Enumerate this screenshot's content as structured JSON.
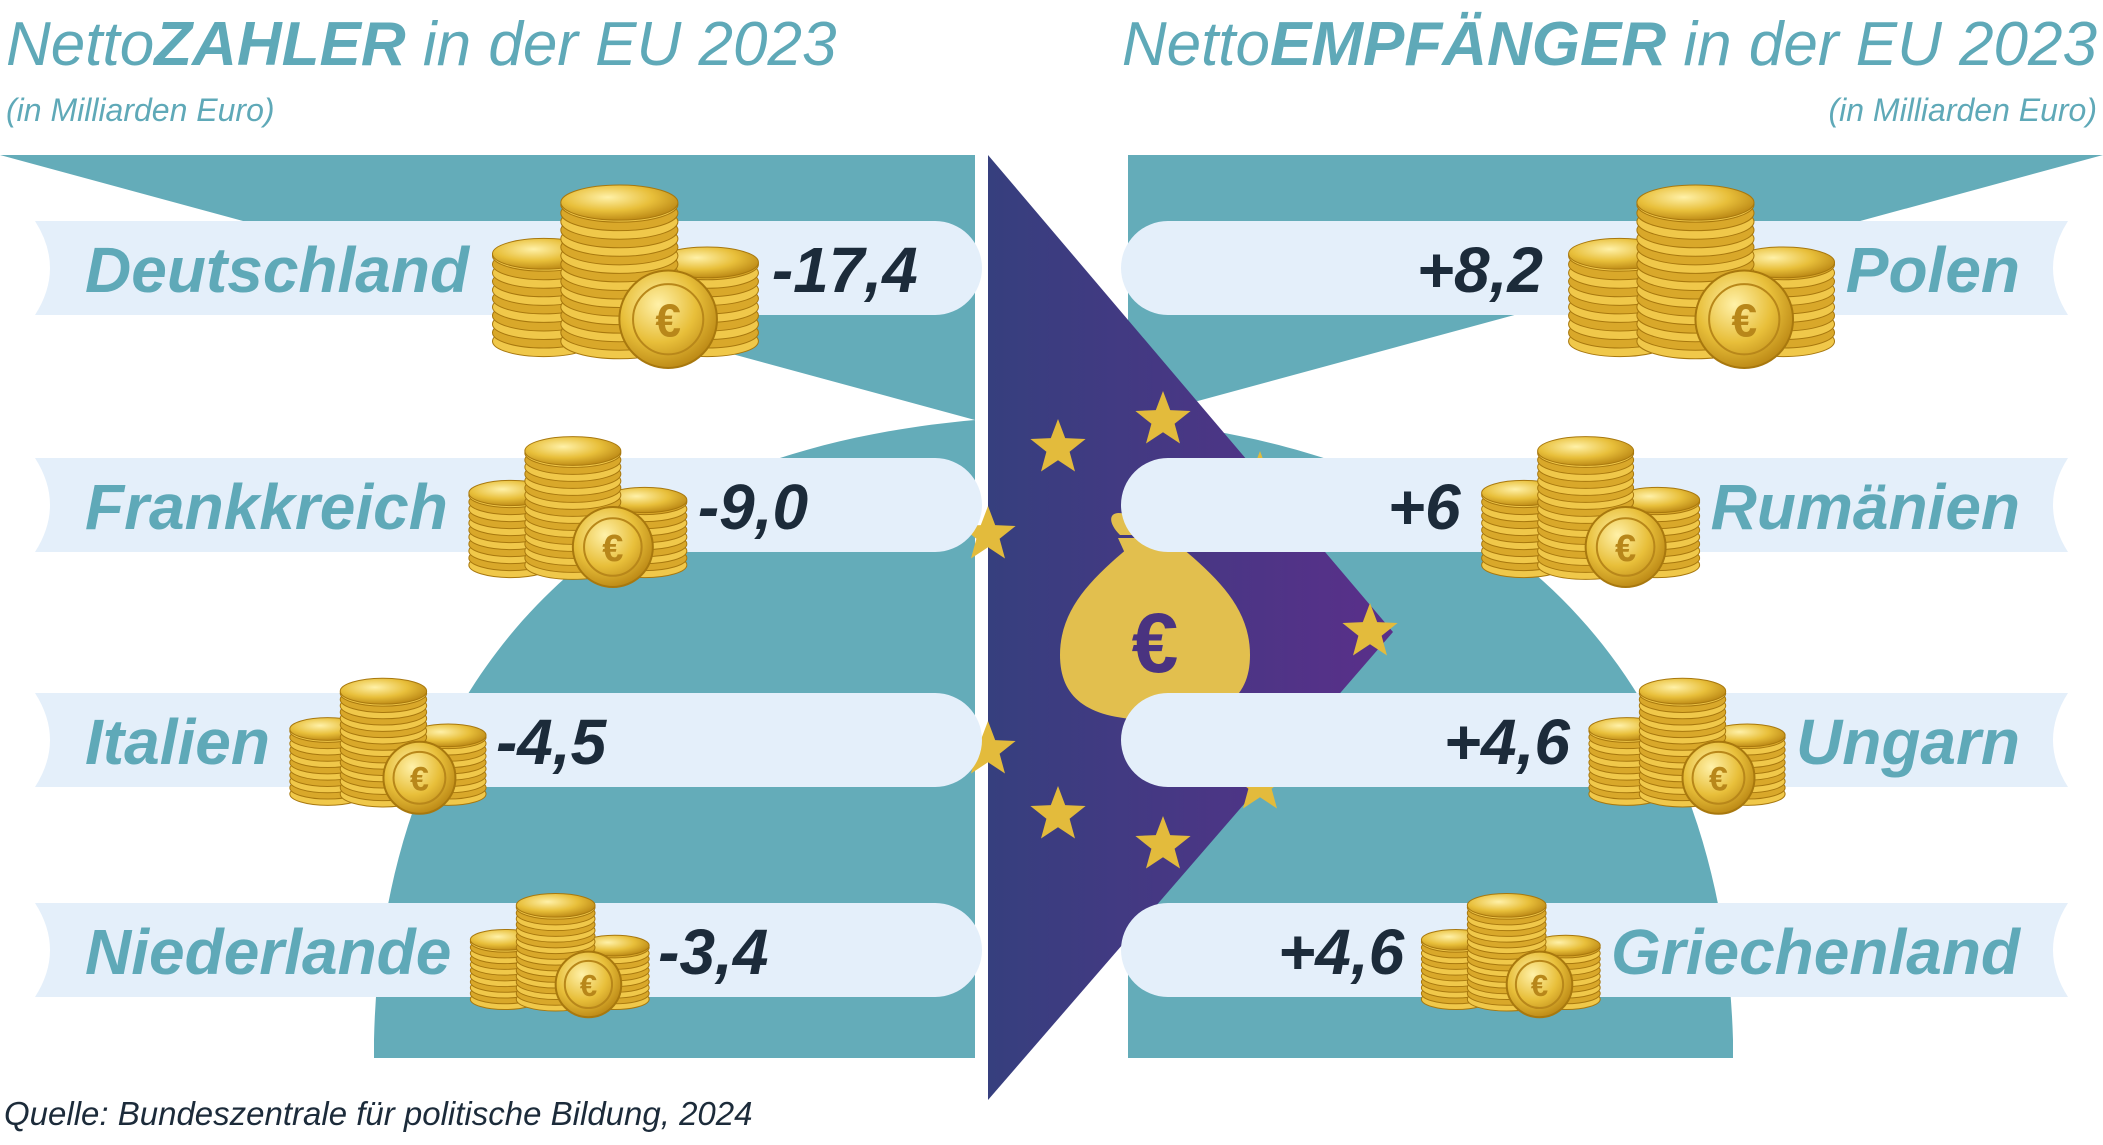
{
  "title_left": {
    "prefix": "Netto",
    "bold": "ZAHLER",
    "suffix": " in der EU 2023"
  },
  "subtitle_left": "(in Milliarden Euro)",
  "title_right": {
    "prefix": "Netto",
    "bold": "EMPFÄNGER",
    "suffix": " in der EU 2023"
  },
  "subtitle_right": "(in Milliarden Euro)",
  "source": "Quelle: Bundeszentrale für politische Bildung, 2024",
  "colors": {
    "teal": "#64acb9",
    "pill": "#e4effa",
    "navy_text": "#1c2b3a",
    "flag_start": "#363f7e",
    "flag_end": "#5a2f8a",
    "gold": "#e3bb3c",
    "bag": "#e2bf4e"
  },
  "icons": [
    "euro-coin-stack-icon",
    "money-bag-icon",
    "euro-sign-icon",
    "star-icon"
  ],
  "chart_data": [
    {
      "type": "bar",
      "categories": [
        "Deutschland",
        "Frankkreich",
        "Italien",
        "Niederlande"
      ],
      "values": [
        -17.4,
        -9.0,
        -4.5,
        -3.4
      ],
      "value_labels": [
        "-17,4",
        "-9,0",
        "-4,5",
        "-3,4"
      ]
    },
    {
      "type": "bar",
      "categories": [
        "Polen",
        "Rumänien",
        "Ungarn",
        "Griechenland"
      ],
      "values": [
        8.2,
        6,
        4.6,
        4.6
      ],
      "value_labels": [
        "+8,2",
        "+6",
        "+4,6",
        "+4,6"
      ]
    }
  ]
}
